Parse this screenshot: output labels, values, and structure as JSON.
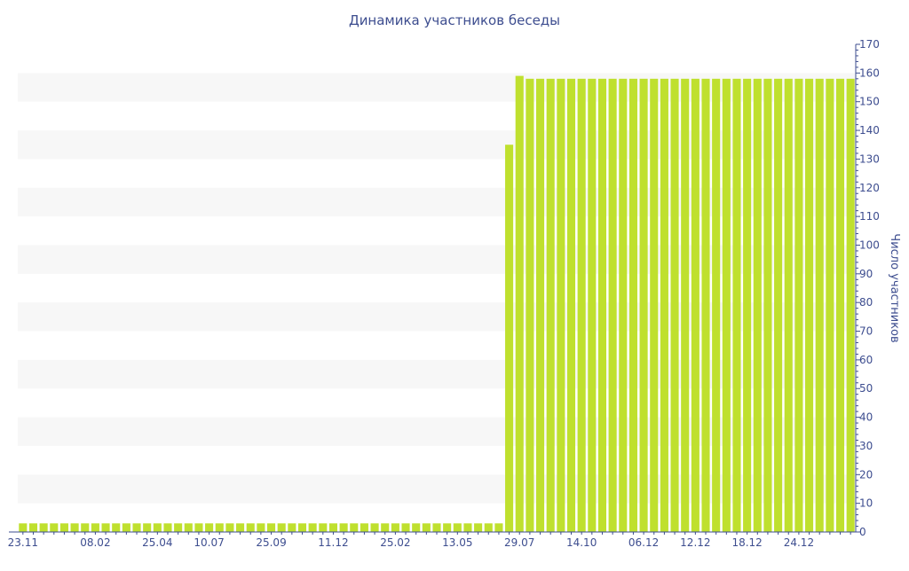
{
  "chart_data": {
    "type": "bar",
    "title": "Динамика участников беседы",
    "ylabel": "Число участников",
    "xlabel": "",
    "ylim": [
      0,
      170
    ],
    "yticks": [
      0,
      10,
      20,
      30,
      40,
      50,
      60,
      70,
      80,
      90,
      100,
      110,
      120,
      130,
      140,
      150,
      160,
      170
    ],
    "y_axis_side": "right",
    "x_tick_labels": [
      "23.11",
      "08.02",
      "25.04",
      "10.07",
      "25.09",
      "11.12",
      "25.02",
      "13.05",
      "29.07",
      "14.10",
      "06.12",
      "12.12",
      "18.12",
      "24.12"
    ],
    "x_tick_label_bar_index": [
      0,
      7,
      13,
      18,
      24,
      30,
      36,
      42,
      48,
      54,
      60,
      65,
      70,
      75
    ],
    "values": [
      3,
      3,
      3,
      3,
      3,
      3,
      3,
      3,
      3,
      3,
      3,
      3,
      3,
      3,
      3,
      3,
      3,
      3,
      3,
      3,
      3,
      3,
      3,
      3,
      3,
      3,
      3,
      3,
      3,
      3,
      3,
      3,
      3,
      3,
      3,
      3,
      3,
      3,
      3,
      3,
      3,
      3,
      3,
      3,
      3,
      3,
      3,
      135,
      159,
      158,
      158,
      158,
      158,
      158,
      158,
      158,
      158,
      158,
      158,
      158,
      158,
      158,
      158,
      158,
      158,
      158,
      158,
      158,
      158,
      158,
      158,
      158,
      158,
      158,
      158,
      158,
      158,
      158,
      158,
      158,
      158
    ],
    "grid": "alternating horizontal bands",
    "colors": {
      "bar": "#bfe02e",
      "band": "#f7f7f7",
      "text": "#3d4d8f",
      "axis": "#3d4d8f"
    }
  }
}
